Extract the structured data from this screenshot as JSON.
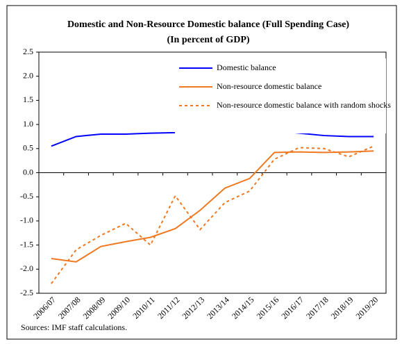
{
  "chart_data": {
    "type": "line",
    "title": "Domestic and Non-Resource Domestic balance (Full Spending Case)",
    "subtitle": "(In percent of GDP)",
    "categories": [
      "2006/07",
      "2007/08",
      "2008/09",
      "2009/10",
      "2010/11",
      "2011/12",
      "2012/13",
      "2013/14",
      "2014/15",
      "2015/16",
      "2016/17",
      "2017/18",
      "2018/19",
      "2019/20"
    ],
    "series": [
      {
        "name": "Domestic balance",
        "color": "#0000ff",
        "dash": false,
        "values": [
          0.55,
          0.75,
          0.8,
          0.8,
          0.82,
          0.83,
          0.95,
          0.93,
          0.9,
          0.87,
          0.82,
          0.77,
          0.75,
          0.75
        ]
      },
      {
        "name": "Non-resource domestic balance",
        "color": "#f07820",
        "dash": false,
        "values": [
          -1.78,
          -1.85,
          -1.53,
          -1.43,
          -1.34,
          -1.16,
          -0.78,
          -0.32,
          -0.12,
          0.42,
          0.43,
          0.42,
          0.43,
          0.45
        ]
      },
      {
        "name": "Non-resource domestic balance with random shocks",
        "color": "#f07820",
        "dash": true,
        "values": [
          -2.3,
          -1.6,
          -1.3,
          -1.05,
          -1.5,
          -0.48,
          -1.18,
          -0.62,
          -0.38,
          0.28,
          0.52,
          0.5,
          0.33,
          0.55
        ]
      }
    ],
    "ylim": [
      -2.5,
      2.5
    ],
    "yticks": [
      2.5,
      {
        "value": 2.0,
        "label": "2.0"
      },
      1.5,
      {
        "value": 1.0,
        "label": "1.0"
      },
      0.5,
      {
        "value": 0,
        "label": "0.0"
      },
      -0.5,
      {
        "value": -1.0,
        "label": "-1.0"
      },
      -1.5,
      {
        "value": -2.0,
        "label": "-2.0"
      },
      -2.5
    ],
    "grid": false,
    "legend": "top-right",
    "source": "Sources: IMF staff calculations."
  }
}
